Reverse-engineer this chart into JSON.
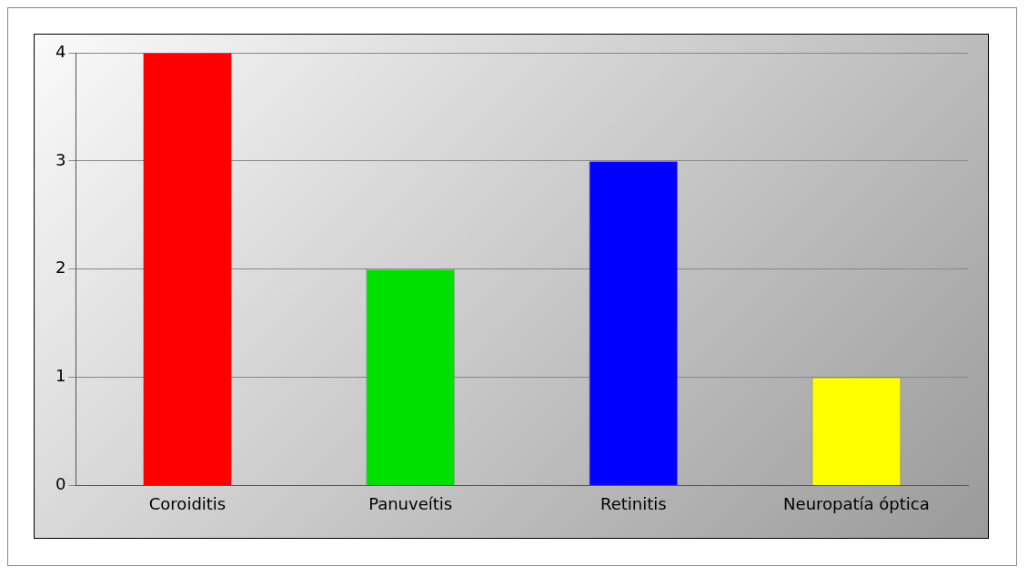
{
  "chart_data": {
    "type": "bar",
    "categories": [
      "Coroiditis",
      "Panuveítis",
      "Retinitis",
      "Neuropatía óptica"
    ],
    "values": [
      4,
      2,
      3,
      1
    ],
    "colors": [
      "#ff0000",
      "#00e000",
      "#0000ff",
      "#ffff00"
    ],
    "ylim": [
      0,
      4
    ],
    "yticks": [
      0,
      1,
      2,
      3,
      4
    ],
    "grid": "y",
    "legend": false
  }
}
